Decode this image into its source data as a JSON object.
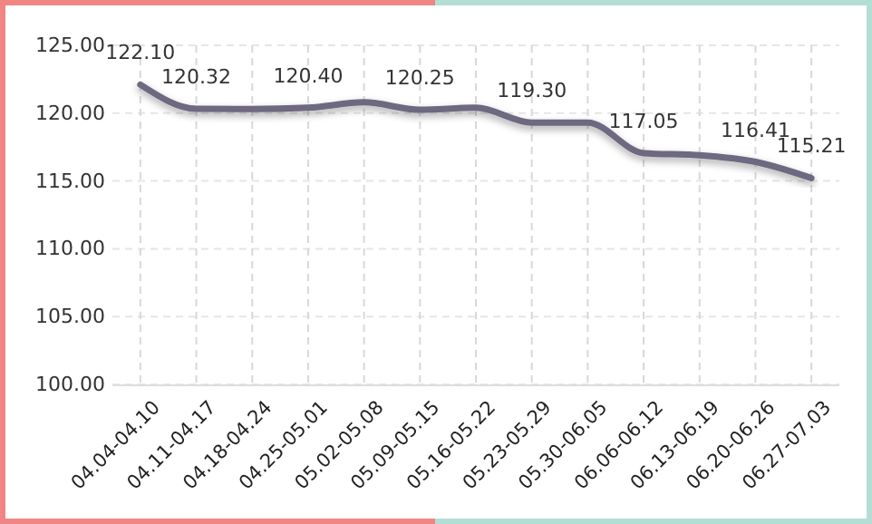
{
  "chart_data": {
    "type": "line",
    "categories": [
      "04.04-04.10",
      "04.11-04.17",
      "04.18-04.24",
      "04.25-05.01",
      "05.02-05.08",
      "05.09-05.15",
      "05.16-05.22",
      "05.23-05.29",
      "05.30-06.05",
      "06.06-06.12",
      "06.13-06.19",
      "06.20-06.26",
      "06.27-07.03"
    ],
    "series": [
      {
        "color": "#6e6780",
        "values": [
          122.1,
          120.32,
          120.3,
          120.4,
          120.8,
          120.25,
          120.4,
          119.3,
          119.3,
          117.05,
          116.9,
          116.41,
          115.21
        ],
        "value_labels": [
          "122.10",
          "120.32",
          null,
          "120.40",
          null,
          "120.25",
          null,
          "119.30",
          null,
          "117.05",
          null,
          "116.41",
          "115.21"
        ]
      }
    ],
    "ylim": [
      100,
      125
    ],
    "yticks": [
      {
        "value": 100,
        "label": "100.00"
      },
      {
        "value": 105,
        "label": "105.00"
      },
      {
        "value": 110,
        "label": "110.00"
      },
      {
        "value": 115,
        "label": "115.00"
      },
      {
        "value": 120,
        "label": "120.00"
      },
      {
        "value": 125,
        "label": "125.00"
      }
    ],
    "grid": true,
    "marker": "none",
    "line_style": "solid"
  }
}
